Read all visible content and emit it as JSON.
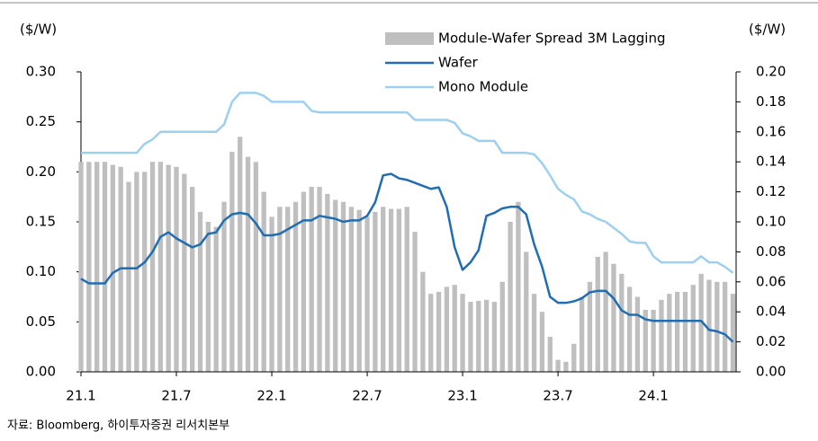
{
  "chart_data": {
    "type": "bar-line",
    "y_label": "($/W)",
    "y2_label": "($/W)",
    "source": "자료: Bloomberg, 하이투자증권 리서치본부",
    "x": [
      0,
      0.5,
      1,
      1.5,
      2,
      2.5,
      3,
      3.5,
      4,
      4.5,
      5,
      5.5,
      6,
      6.5,
      7,
      7.5,
      8,
      8.5,
      9,
      9.5,
      10,
      10.5,
      11,
      11.5,
      12,
      12.5,
      13,
      13.5,
      14,
      14.5,
      15,
      15.5,
      16,
      16.5,
      17,
      17.5,
      18,
      18.5,
      19,
      19.5,
      20,
      20.5,
      21,
      21.5,
      22,
      22.5,
      23,
      23.5,
      24,
      24.5,
      25,
      25.5,
      26,
      26.5,
      27,
      27.5,
      28,
      28.5,
      29,
      29.5,
      30,
      30.5,
      31,
      31.5,
      32,
      32.5,
      33,
      33.5,
      34,
      34.5,
      35,
      35.5,
      36,
      36.5,
      37,
      37.5,
      38,
      38.5,
      39,
      39.5,
      40,
      40.5,
      41
    ],
    "xlim": [
      0,
      41.2
    ],
    "xticks": [
      {
        "value": 0,
        "label": "21.1"
      },
      {
        "value": 6,
        "label": "21.7"
      },
      {
        "value": 12,
        "label": "22.1"
      },
      {
        "value": 18,
        "label": "22.7"
      },
      {
        "value": 24,
        "label": "23.1"
      },
      {
        "value": 30,
        "label": "23.7"
      },
      {
        "value": 36,
        "label": "24.1"
      }
    ],
    "ylim": [
      0,
      0.3
    ],
    "yticks": [
      {
        "value": 0,
        "label": "0.00"
      },
      {
        "value": 0.05,
        "label": "0.05"
      },
      {
        "value": 0.1,
        "label": "0.10"
      },
      {
        "value": 0.15,
        "label": "0.15"
      },
      {
        "value": 0.2,
        "label": "0.20"
      },
      {
        "value": 0.25,
        "label": "0.25"
      },
      {
        "value": 0.3,
        "label": "0.30"
      }
    ],
    "y2lim": [
      0,
      0.2
    ],
    "y2ticks": [
      {
        "value": 0,
        "label": "0.00"
      },
      {
        "value": 0.02,
        "label": "0.02"
      },
      {
        "value": 0.04,
        "label": "0.04"
      },
      {
        "value": 0.06,
        "label": "0.06"
      },
      {
        "value": 0.08,
        "label": "0.08"
      },
      {
        "value": 0.1,
        "label": "0.10"
      },
      {
        "value": 0.12,
        "label": "0.12"
      },
      {
        "value": 0.14,
        "label": "0.14"
      },
      {
        "value": 0.16,
        "label": "0.16"
      },
      {
        "value": 0.18,
        "label": "0.18"
      },
      {
        "value": 0.2,
        "label": "0.20"
      }
    ],
    "series": [
      {
        "name": "Module-Wafer Spread 3M Lagging",
        "kind": "bar",
        "color": "#bfbfbf",
        "values": [
          0.21,
          0.21,
          0.21,
          0.21,
          0.207,
          0.205,
          0.19,
          0.2,
          0.2,
          0.21,
          0.21,
          0.207,
          0.205,
          0.198,
          0.185,
          0.16,
          0.15,
          0.145,
          0.17,
          0.22,
          0.235,
          0.215,
          0.21,
          0.18,
          0.155,
          0.165,
          0.165,
          0.17,
          0.18,
          0.185,
          0.185,
          0.178,
          0.172,
          0.17,
          0.165,
          0.162,
          0.155,
          0.16,
          0.165,
          0.163,
          0.163,
          0.165,
          0.14,
          0.1,
          0.078,
          0.08,
          0.085,
          0.087,
          0.078,
          0.07,
          0.071,
          0.072,
          0.07,
          0.09,
          0.15,
          0.17,
          0.12,
          0.078,
          0.06,
          0.035,
          0.012,
          0.01,
          0.028,
          0.075,
          0.09,
          0.115,
          0.12,
          0.108,
          0.098,
          0.085,
          0.075,
          0.062,
          0.062,
          0.072,
          0.078,
          0.08,
          0.08,
          0.087,
          0.098,
          0.092,
          0.09,
          0.09,
          0.078
        ]
      },
      {
        "name": "Wafer",
        "kind": "line",
        "axis": "y2",
        "color": "#1f6db5",
        "values": [
          0.062,
          0.059,
          0.059,
          0.059,
          0.066,
          0.069,
          0.069,
          0.069,
          0.073,
          0.08,
          0.09,
          0.093,
          0.089,
          0.086,
          0.083,
          0.085,
          0.092,
          0.093,
          0.101,
          0.105,
          0.106,
          0.105,
          0.099,
          0.091,
          0.091,
          0.092,
          0.095,
          0.098,
          0.101,
          0.101,
          0.104,
          0.103,
          0.102,
          0.1,
          0.101,
          0.101,
          0.104,
          0.113,
          0.131,
          0.132,
          0.129,
          0.128,
          0.126,
          0.124,
          0.122,
          0.123,
          0.11,
          0.083,
          0.068,
          0.073,
          0.081,
          0.104,
          0.106,
          0.109,
          0.11,
          0.11,
          0.105,
          0.085,
          0.07,
          0.05,
          0.046,
          0.046,
          0.047,
          0.049,
          0.053,
          0.054,
          0.054,
          0.049,
          0.041,
          0.038,
          0.038,
          0.035,
          0.034,
          0.034,
          0.034,
          0.034,
          0.034,
          0.034,
          0.034,
          0.028,
          0.027,
          0.025,
          0.02
        ]
      },
      {
        "name": "Mono Module",
        "kind": "line",
        "axis": "y2",
        "color": "#9dd0f0",
        "values": [
          0.146,
          0.146,
          0.146,
          0.146,
          0.146,
          0.146,
          0.146,
          0.146,
          0.152,
          0.155,
          0.16,
          0.16,
          0.16,
          0.16,
          0.16,
          0.16,
          0.16,
          0.16,
          0.165,
          0.18,
          0.186,
          0.186,
          0.186,
          0.184,
          0.18,
          0.18,
          0.18,
          0.18,
          0.18,
          0.174,
          0.173,
          0.173,
          0.173,
          0.173,
          0.173,
          0.173,
          0.173,
          0.173,
          0.173,
          0.173,
          0.173,
          0.173,
          0.168,
          0.168,
          0.168,
          0.168,
          0.168,
          0.166,
          0.159,
          0.157,
          0.154,
          0.154,
          0.154,
          0.146,
          0.146,
          0.146,
          0.146,
          0.145,
          0.139,
          0.131,
          0.122,
          0.118,
          0.115,
          0.107,
          0.105,
          0.102,
          0.1,
          0.096,
          0.092,
          0.087,
          0.086,
          0.086,
          0.077,
          0.073,
          0.073,
          0.073,
          0.073,
          0.073,
          0.077,
          0.073,
          0.073,
          0.07,
          0.066
        ]
      }
    ]
  }
}
